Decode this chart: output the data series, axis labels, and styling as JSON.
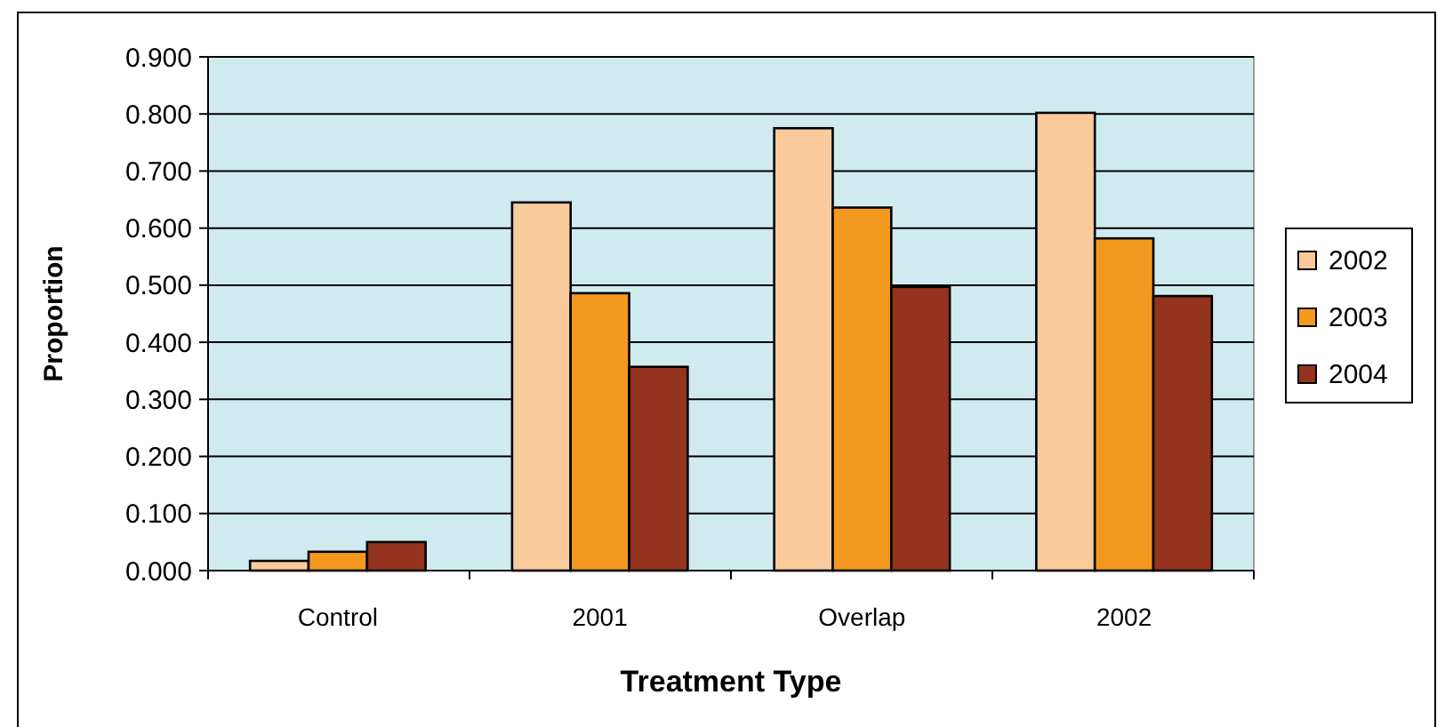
{
  "chart_data": {
    "type": "bar",
    "xlabel": "Treatment Type",
    "ylabel": "Proportion",
    "categories": [
      "Control",
      "2001",
      "Overlap",
      "2002"
    ],
    "series": [
      {
        "name": "2002",
        "color": "#f9cb9c",
        "values": [
          0.017,
          0.645,
          0.775,
          0.802
        ]
      },
      {
        "name": "2003",
        "color": "#f4991f",
        "values": [
          0.033,
          0.486,
          0.636,
          0.582
        ]
      },
      {
        "name": "2004",
        "color": "#94341f",
        "values": [
          0.05,
          0.357,
          0.497,
          0.481
        ]
      }
    ],
    "ylim": [
      0,
      0.9
    ],
    "yticks": [
      {
        "value": 0,
        "label": "0.000"
      },
      {
        "value": 0.1,
        "label": "0.100"
      },
      {
        "value": 0.2,
        "label": "0.200"
      },
      {
        "value": 0.3,
        "label": "0.300"
      },
      {
        "value": 0.4,
        "label": "0.400"
      },
      {
        "value": 0.5,
        "label": "0.500"
      },
      {
        "value": 0.6,
        "label": "0.600"
      },
      {
        "value": 0.7,
        "label": "0.700"
      },
      {
        "value": 0.8,
        "label": "0.800"
      },
      {
        "value": 0.9,
        "label": "0.900"
      }
    ],
    "grid": "y",
    "legend": "right"
  }
}
